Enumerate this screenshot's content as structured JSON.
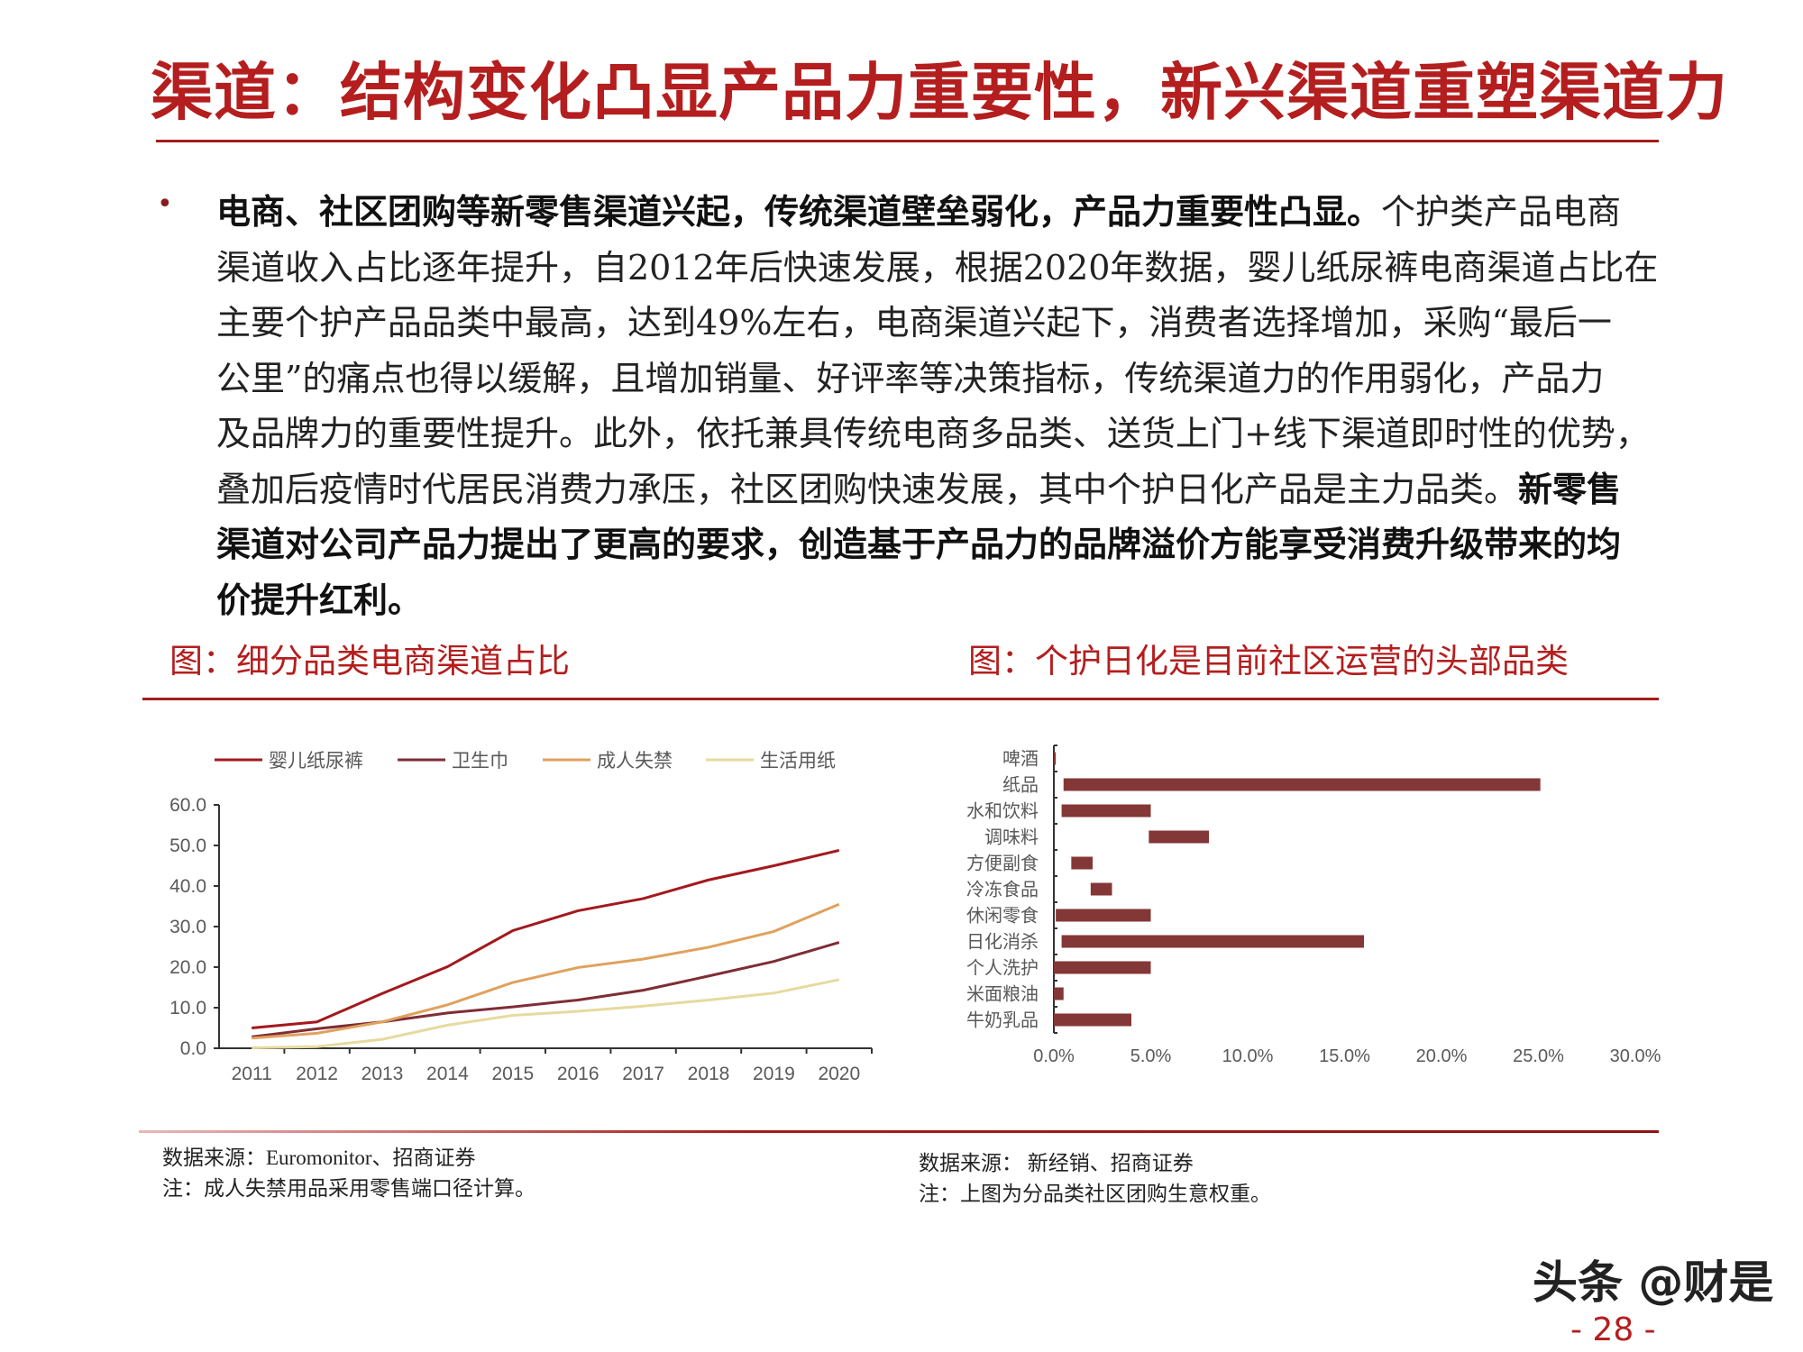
{
  "title": "渠道：结构变化凸显产品力重要性，新兴渠道重塑渠道力",
  "bullet_symbol": "•",
  "paragraph_lines": [
    [
      {
        "t": "电商、社区团购等新零售渠道兴起，传统渠道壁垒弱化，产品力重要性凸显。",
        "b": true
      },
      {
        "t": "个护类产品电商",
        "b": false
      }
    ],
    [
      {
        "t": "渠道收入占比逐年提升，自2012年后快速发展，根据2020年数据，婴儿纸尿裤电商渠道占比在",
        "b": false
      }
    ],
    [
      {
        "t": "主要个护产品品类中最高，达到49%左右，电商渠道兴起下，消费者选择增加，采购“最后一",
        "b": false
      }
    ],
    [
      {
        "t": "公里”的痛点也得以缓解，且增加销量、好评率等决策指标，传统渠道力的作用弱化，产品力",
        "b": false
      }
    ],
    [
      {
        "t": "及品牌力的重要性提升。此外，依托兼具传统电商多品类、送货上门+线下渠道即时性的优势，",
        "b": false
      }
    ],
    [
      {
        "t": "叠加后疫情时代居民消费力承压，社区团购快速发展，其中个护日化产品是主力品类。",
        "b": false
      },
      {
        "t": "新零售",
        "b": true
      }
    ],
    [
      {
        "t": "渠道对公司产品力提出了更高的要求，创造基于产品力的品牌溢价方能享受消费升级带来的均",
        "b": true
      }
    ],
    [
      {
        "t": "价提升红利。",
        "b": true
      }
    ]
  ],
  "captions": {
    "left": "图：细分品类电商渠道占比",
    "right": "图：个护日化是目前社区运营的头部品类"
  },
  "sources": {
    "left_source": "数据来源：Euromonitor、招商证券",
    "left_note": "注：成人失禁用品采用零售端口径计算。",
    "right_source": "数据来源： 新经销、招商证券",
    "right_note": "注：上图为分品类社区团购生意权重。"
  },
  "watermark": "头条 @财是",
  "page_number": "- 28 -",
  "colors": {
    "accent": "#B41E1E",
    "bar": "#833736"
  },
  "chart_data": [
    {
      "type": "line",
      "categories": [
        "2011",
        "2012",
        "2013",
        "2014",
        "2015",
        "2016",
        "2017",
        "2018",
        "2019",
        "2020"
      ],
      "ylim": [
        0,
        60
      ],
      "yticks": [
        "0.0",
        "10.0",
        "20.0",
        "30.0",
        "40.0",
        "50.0",
        "60.0"
      ],
      "legend_position": "top",
      "grid": false,
      "series": [
        {
          "name": "婴儿纸尿裤",
          "color": "#A3191D",
          "values": [
            5.0,
            6.5,
            13.5,
            20.1,
            29.0,
            33.9,
            36.9,
            41.5,
            45.0,
            48.8
          ]
        },
        {
          "name": "卫生巾",
          "color": "#7F2D35",
          "values": [
            2.8,
            4.8,
            6.5,
            8.7,
            10.2,
            11.9,
            14.3,
            17.8,
            21.4,
            26.1
          ]
        },
        {
          "name": "成人失禁",
          "color": "#E0A15C",
          "values": [
            2.5,
            3.7,
            6.5,
            10.7,
            16.2,
            19.9,
            22.0,
            24.9,
            28.8,
            35.5
          ]
        },
        {
          "name": "生活用纸",
          "color": "#E6DA9E",
          "values": [
            0.1,
            0.4,
            2.2,
            5.7,
            8.1,
            9.1,
            10.4,
            11.9,
            13.6,
            16.9
          ]
        }
      ]
    },
    {
      "type": "bar",
      "orientation": "horizontal",
      "categories": [
        "啤酒",
        "纸品",
        "水和饮料",
        "调味料",
        "方便副食",
        "冷冻食品",
        "休闲零食",
        "日化消杀",
        "个人洗护",
        "米面粮油",
        "牛奶乳品"
      ],
      "ranges": [
        [
          0,
          0.1
        ],
        [
          0.5,
          25.1
        ],
        [
          0.4,
          5.0
        ],
        [
          4.9,
          8.0
        ],
        [
          0.9,
          2.0
        ],
        [
          1.9,
          3.0
        ],
        [
          0.1,
          5.0
        ],
        [
          0.4,
          16.0
        ],
        [
          0,
          5.0
        ],
        [
          0,
          0.5
        ],
        [
          0,
          4.0
        ]
      ],
      "xlim": [
        0,
        30
      ],
      "xticks": [
        "0.0%",
        "5.0%",
        "10.0%",
        "15.0%",
        "20.0%",
        "25.0%",
        "30.0%"
      ],
      "grid": false
    }
  ]
}
